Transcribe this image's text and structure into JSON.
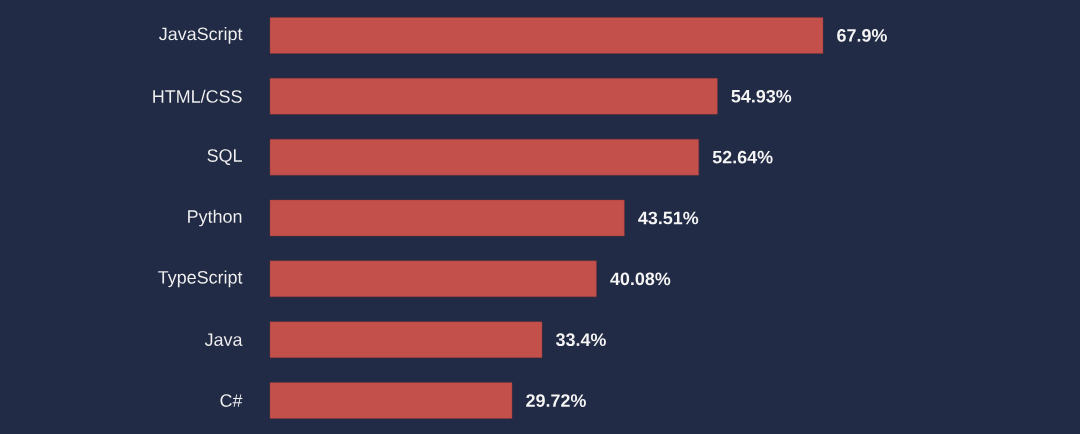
{
  "chart_data": {
    "type": "bar",
    "orientation": "horizontal",
    "categories": [
      "JavaScript",
      "HTML/CSS",
      "SQL",
      "Python",
      "TypeScript",
      "Java",
      "C#"
    ],
    "values": [
      67.9,
      54.93,
      52.64,
      43.51,
      40.08,
      33.4,
      29.72
    ],
    "value_labels": [
      "67.9%",
      "54.93%",
      "52.64%",
      "43.51%",
      "40.08%",
      "33.4%",
      "29.72%"
    ],
    "color": "#c4504c"
  }
}
